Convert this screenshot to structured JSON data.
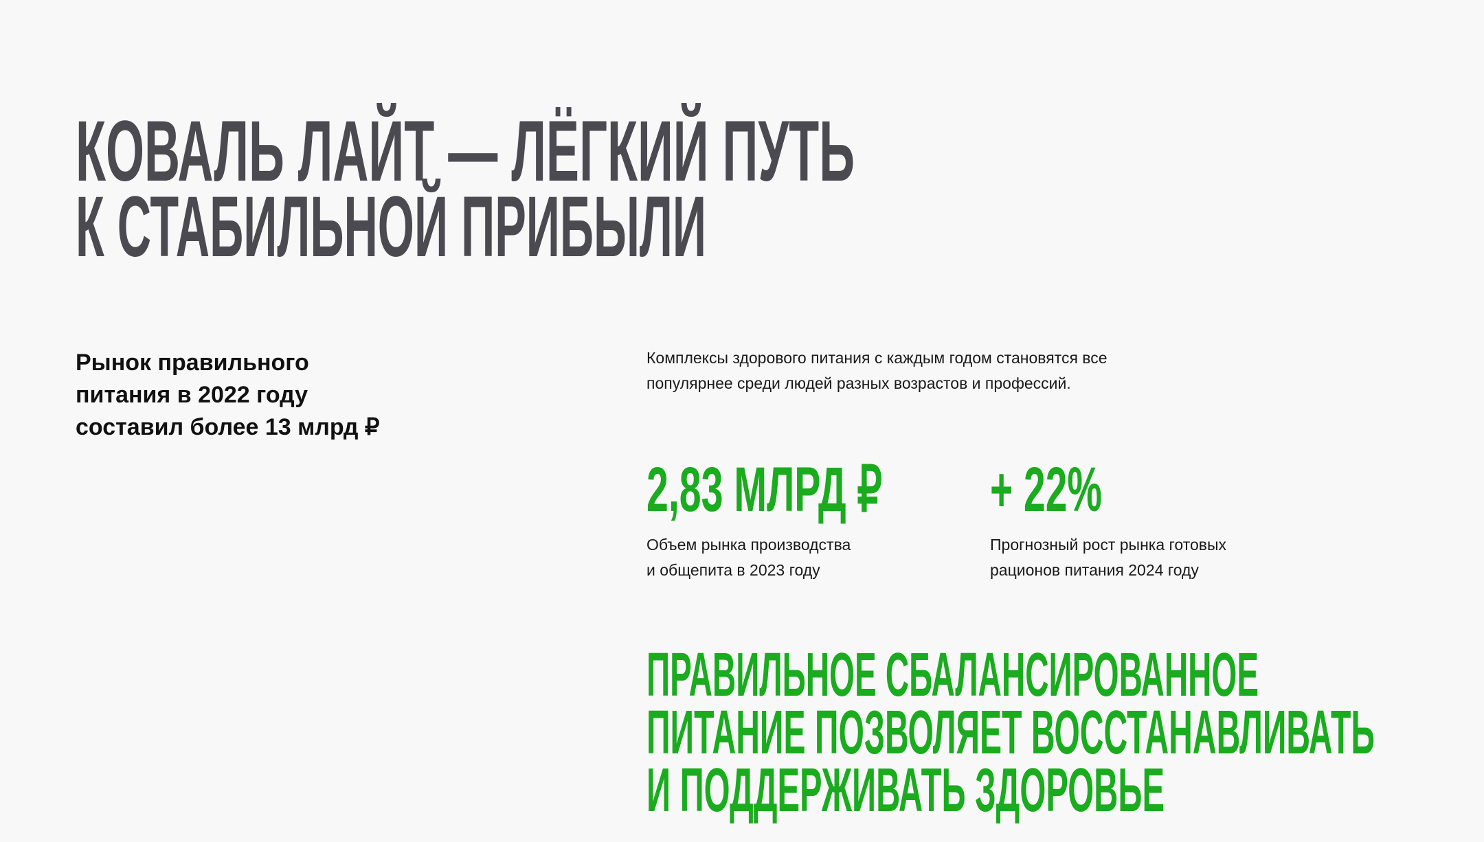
{
  "title": {
    "lines": [
      "КОВАЛЬ ЛАЙТ — ЛЁГКИЙ ПУТЬ",
      "К СТАБИЛЬНОЙ ПРИБЫЛИ"
    ]
  },
  "market": {
    "lines": [
      "Рынок правильного",
      "питания в 2022 году",
      "составил более 13 млрд ₽"
    ]
  },
  "intro": {
    "lines": [
      "Комплексы здорового питания с каждым годом становятся все",
      "популярнее среди людей разных возрастов и профессий."
    ]
  },
  "stats": [
    {
      "value": "2,83 МЛРД ₽",
      "caption": [
        "Объем рынка производства",
        "и общепита в 2023 году"
      ]
    },
    {
      "value": "+ 22%",
      "caption": [
        "Прогнозный рост рынка готовых",
        "рационов питания 2024 году"
      ]
    }
  ],
  "slogan": {
    "lines": [
      "ПРАВИЛЬНОЕ СБАЛАНСИРОВАННОЕ",
      "ПИТАНИЕ ПОЗВОЛЯЕТ ВОССТАНАВЛИВАТЬ",
      "И ПОДДЕРЖИВАТЬ ЗДОРОВЬЕ"
    ]
  },
  "colors": {
    "background": "#f8f8f8",
    "title": "#4a4a50",
    "accent": "#1aab1e"
  }
}
